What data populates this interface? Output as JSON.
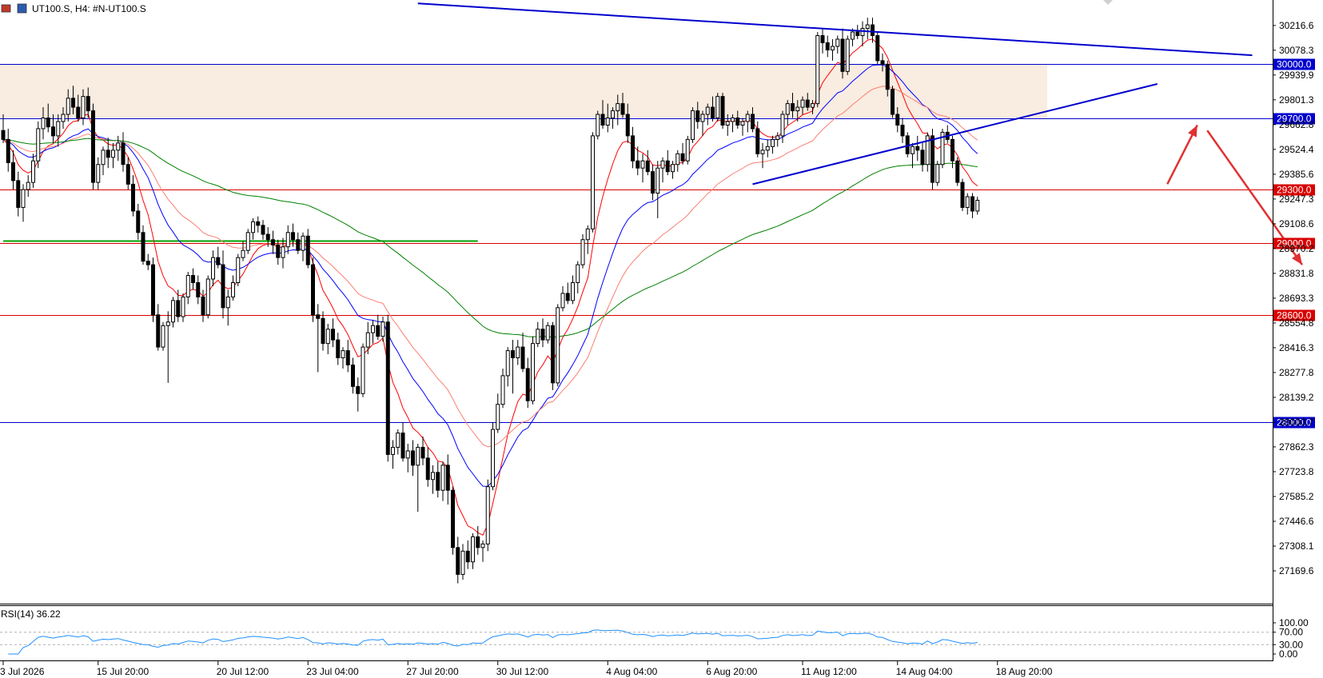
{
  "header": {
    "symbol_line": "UT100.S, H4:  #N-UT100.S"
  },
  "chart_data": {
    "type": "candlestick",
    "price_axis": {
      "ylim": [
        27000,
        30350
      ],
      "ticks": [
        "30216.6",
        "30078.3",
        "29939.9",
        "29801.3",
        "29662.8",
        "29524.4",
        "29385.6",
        "29247.3",
        "29108.6",
        "28970.2",
        "28831.8",
        "28693.3",
        "28554.8",
        "28416.3",
        "28277.8",
        "28139.2",
        "28000.7",
        "27862.3",
        "27723.8",
        "27585.2",
        "27446.6",
        "27308.1",
        "27169.6"
      ]
    },
    "time_axis": {
      "labels": [
        "3 Jul 2026",
        "15 Jul 20:00",
        "20 Jul 12:00",
        "23 Jul 04:00",
        "27 Jul 20:00",
        "30 Jul 12:00",
        "4 Aug 04:00",
        "6 Aug 20:00",
        "11 Aug 12:00",
        "14 Aug 04:00",
        "18 Aug 20:00"
      ],
      "label_bar_index": [
        0,
        19,
        43,
        61,
        81,
        99,
        121,
        141,
        160,
        179,
        199
      ]
    },
    "horizontal_levels": [
      {
        "value": 30000,
        "label": "30000.0",
        "color": "#0000cd"
      },
      {
        "value": 29700,
        "label": "29700.0",
        "color": "#0000cd"
      },
      {
        "value": 29300,
        "label": "29300.0",
        "color": "#d90000"
      },
      {
        "value": 29000,
        "label": "29000.0",
        "color": "#d90000"
      },
      {
        "value": 28600,
        "label": "28600.0",
        "color": "#d90000"
      },
      {
        "value": 28000,
        "label": "28000.0",
        "color": "#0000cd"
      }
    ],
    "zone": {
      "from": 29700,
      "to": 30000,
      "color": "#f9ece0"
    },
    "candles": [
      [
        29630,
        29720,
        29560,
        29580
      ],
      [
        29580,
        29640,
        29400,
        29450
      ],
      [
        29450,
        29520,
        29300,
        29350
      ],
      [
        29350,
        29400,
        29150,
        29200
      ],
      [
        29200,
        29330,
        29120,
        29300
      ],
      [
        29300,
        29380,
        29260,
        29340
      ],
      [
        29340,
        29500,
        29310,
        29460
      ],
      [
        29460,
        29680,
        29420,
        29640
      ],
      [
        29640,
        29760,
        29580,
        29700
      ],
      [
        29700,
        29780,
        29620,
        29650
      ],
      [
        29650,
        29720,
        29560,
        29600
      ],
      [
        29600,
        29720,
        29540,
        29680
      ],
      [
        29680,
        29760,
        29640,
        29720
      ],
      [
        29720,
        29860,
        29680,
        29810
      ],
      [
        29810,
        29880,
        29720,
        29760
      ],
      [
        29760,
        29830,
        29680,
        29700
      ],
      [
        29700,
        29860,
        29660,
        29820
      ],
      [
        29820,
        29870,
        29700,
        29740
      ],
      [
        29740,
        29780,
        29300,
        29340
      ],
      [
        29340,
        29480,
        29300,
        29440
      ],
      [
        29440,
        29540,
        29380,
        29520
      ],
      [
        29520,
        29590,
        29420,
        29480
      ],
      [
        29480,
        29560,
        29420,
        29520
      ],
      [
        29520,
        29600,
        29460,
        29560
      ],
      [
        29560,
        29620,
        29400,
        29440
      ],
      [
        29440,
        29480,
        29300,
        29330
      ],
      [
        29330,
        29380,
        29150,
        29180
      ],
      [
        29180,
        29220,
        29020,
        29060
      ],
      [
        29060,
        29100,
        28880,
        28900
      ],
      [
        28900,
        28940,
        28850,
        28880
      ],
      [
        28880,
        28920,
        28560,
        28600
      ],
      [
        28600,
        28660,
        28400,
        28420
      ],
      [
        28420,
        28560,
        28400,
        28540
      ],
      [
        28540,
        28620,
        28220,
        28560
      ],
      [
        28560,
        28700,
        28530,
        28680
      ],
      [
        28680,
        28740,
        28560,
        28590
      ],
      [
        28590,
        28720,
        28560,
        28700
      ],
      [
        28700,
        28840,
        28660,
        28820
      ],
      [
        28820,
        28860,
        28740,
        28780
      ],
      [
        28780,
        28820,
        28660,
        28700
      ],
      [
        28700,
        28740,
        28560,
        28600
      ],
      [
        28600,
        28820,
        28580,
        28800
      ],
      [
        28800,
        28960,
        28760,
        28920
      ],
      [
        28920,
        28980,
        28860,
        28880
      ],
      [
        28880,
        28960,
        28580,
        28640
      ],
      [
        28640,
        28740,
        28540,
        28700
      ],
      [
        28700,
        28820,
        28680,
        28780
      ],
      [
        28780,
        28940,
        28760,
        28920
      ],
      [
        28920,
        29010,
        28900,
        28960
      ],
      [
        28960,
        29080,
        28940,
        29060
      ],
      [
        29060,
        29140,
        29020,
        29120
      ],
      [
        29120,
        29150,
        29060,
        29100
      ],
      [
        29100,
        29130,
        29020,
        29050
      ],
      [
        29050,
        29090,
        28980,
        29020
      ],
      [
        29020,
        29070,
        28940,
        28990
      ],
      [
        28990,
        29020,
        28880,
        28920
      ],
      [
        28920,
        29030,
        28860,
        28980
      ],
      [
        28980,
        29100,
        28940,
        29060
      ],
      [
        29060,
        29110,
        28980,
        29020
      ],
      [
        29020,
        29060,
        28940,
        28960
      ],
      [
        28960,
        29060,
        28900,
        29040
      ],
      [
        29040,
        29080,
        28860,
        28880
      ],
      [
        28880,
        28920,
        28560,
        28600
      ],
      [
        28600,
        28660,
        28280,
        28580
      ],
      [
        28580,
        28620,
        28400,
        28440
      ],
      [
        28440,
        28550,
        28380,
        28520
      ],
      [
        28520,
        28580,
        28420,
        28460
      ],
      [
        28460,
        28500,
        28320,
        28360
      ],
      [
        28360,
        28420,
        28300,
        28400
      ],
      [
        28400,
        28460,
        28280,
        28320
      ],
      [
        28320,
        28360,
        28160,
        28200
      ],
      [
        28200,
        28250,
        28060,
        28160
      ],
      [
        28160,
        28440,
        28140,
        28420
      ],
      [
        28420,
        28560,
        28380,
        28500
      ],
      [
        28500,
        28570,
        28440,
        28540
      ],
      [
        28540,
        28600,
        28460,
        28480
      ],
      [
        28480,
        28590,
        28450,
        28560
      ],
      [
        28560,
        28600,
        27780,
        27820
      ],
      [
        27820,
        27900,
        27740,
        27860
      ],
      [
        27860,
        27960,
        27820,
        27940
      ],
      [
        27940,
        28000,
        27780,
        27800
      ],
      [
        27800,
        27880,
        27720,
        27840
      ],
      [
        27840,
        27900,
        27700,
        27760
      ],
      [
        27760,
        27880,
        27500,
        27860
      ],
      [
        27860,
        27920,
        27760,
        27800
      ],
      [
        27800,
        27860,
        27640,
        27680
      ],
      [
        27680,
        27760,
        27600,
        27720
      ],
      [
        27720,
        27780,
        27580,
        27620
      ],
      [
        27620,
        27780,
        27560,
        27760
      ],
      [
        27760,
        27820,
        27540,
        27620
      ],
      [
        27620,
        27640,
        27260,
        27300
      ],
      [
        27300,
        27360,
        27100,
        27150
      ],
      [
        27150,
        27320,
        27120,
        27280
      ],
      [
        27280,
        27340,
        27180,
        27220
      ],
      [
        27220,
        27380,
        27180,
        27360
      ],
      [
        27360,
        27420,
        27260,
        27300
      ],
      [
        27300,
        27340,
        27220,
        27320
      ],
      [
        27320,
        27680,
        27280,
        27640
      ],
      [
        27640,
        28000,
        27620,
        27960
      ],
      [
        27960,
        28160,
        27940,
        28100
      ],
      [
        28100,
        28300,
        28080,
        28260
      ],
      [
        28260,
        28420,
        28200,
        28400
      ],
      [
        28400,
        28460,
        28160,
        28360
      ],
      [
        28360,
        28460,
        28320,
        28420
      ],
      [
        28420,
        28500,
        28280,
        28300
      ],
      [
        28300,
        28360,
        28080,
        28120
      ],
      [
        28120,
        28480,
        28100,
        28440
      ],
      [
        28440,
        28560,
        28420,
        28520
      ],
      [
        28520,
        28580,
        28420,
        28460
      ],
      [
        28460,
        28560,
        28440,
        28540
      ],
      [
        28540,
        28560,
        28180,
        28220
      ],
      [
        28220,
        28660,
        28200,
        28640
      ],
      [
        28640,
        28760,
        28620,
        28720
      ],
      [
        28720,
        28780,
        28660,
        28680
      ],
      [
        28680,
        28820,
        28660,
        28780
      ],
      [
        28780,
        28900,
        28720,
        28880
      ],
      [
        28880,
        29050,
        28860,
        29020
      ],
      [
        29020,
        29100,
        28940,
        29080
      ],
      [
        29080,
        29620,
        29060,
        29600
      ],
      [
        29600,
        29740,
        29580,
        29720
      ],
      [
        29720,
        29800,
        29640,
        29660
      ],
      [
        29660,
        29780,
        29620,
        29700
      ],
      [
        29700,
        29760,
        29640,
        29740
      ],
      [
        29740,
        29830,
        29660,
        29780
      ],
      [
        29780,
        29840,
        29700,
        29720
      ],
      [
        29720,
        29780,
        29560,
        29600
      ],
      [
        29600,
        29650,
        29420,
        29460
      ],
      [
        29460,
        29540,
        29380,
        29420
      ],
      [
        29420,
        29500,
        29340,
        29460
      ],
      [
        29460,
        29520,
        29380,
        29400
      ],
      [
        29400,
        29440,
        29240,
        29280
      ],
      [
        29280,
        29460,
        29140,
        29420
      ],
      [
        29420,
        29480,
        29340,
        29460
      ],
      [
        29460,
        29520,
        29380,
        29400
      ],
      [
        29400,
        29460,
        29360,
        29440
      ],
      [
        29440,
        29520,
        29400,
        29500
      ],
      [
        29500,
        29560,
        29440,
        29460
      ],
      [
        29460,
        29600,
        29440,
        29580
      ],
      [
        29580,
        29760,
        29560,
        29740
      ],
      [
        29740,
        29790,
        29640,
        29680
      ],
      [
        29680,
        29740,
        29600,
        29720
      ],
      [
        29720,
        29780,
        29660,
        29760
      ],
      [
        29760,
        29820,
        29680,
        29700
      ],
      [
        29700,
        29840,
        29680,
        29820
      ],
      [
        29820,
        29840,
        29640,
        29660
      ],
      [
        29660,
        29720,
        29600,
        29680
      ],
      [
        29680,
        29720,
        29620,
        29700
      ],
      [
        29700,
        29740,
        29640,
        29660
      ],
      [
        29660,
        29700,
        29600,
        29680
      ],
      [
        29680,
        29740,
        29620,
        29720
      ],
      [
        29720,
        29760,
        29620,
        29640
      ],
      [
        29640,
        29680,
        29480,
        29500
      ],
      [
        29500,
        29560,
        29420,
        29520
      ],
      [
        29520,
        29580,
        29480,
        29540
      ],
      [
        29540,
        29600,
        29500,
        29580
      ],
      [
        29580,
        29620,
        29540,
        29600
      ],
      [
        29600,
        29740,
        29560,
        29720
      ],
      [
        29720,
        29800,
        29660,
        29780
      ],
      [
        29780,
        29840,
        29700,
        29740
      ],
      [
        29740,
        29800,
        29680,
        29760
      ],
      [
        29760,
        29820,
        29720,
        29800
      ],
      [
        29800,
        29840,
        29740,
        29760
      ],
      [
        29760,
        29800,
        29720,
        29780
      ],
      [
        29780,
        30180,
        29760,
        30160
      ],
      [
        30160,
        30200,
        30060,
        30120
      ],
      [
        30120,
        30160,
        30040,
        30080
      ],
      [
        30080,
        30140,
        30020,
        30100
      ],
      [
        30100,
        30160,
        30060,
        30140
      ],
      [
        30140,
        30200,
        29920,
        29960
      ],
      [
        29960,
        30160,
        29940,
        30140
      ],
      [
        30140,
        30200,
        30100,
        30180
      ],
      [
        30180,
        30220,
        30140,
        30160
      ],
      [
        30160,
        30240,
        30100,
        30200
      ],
      [
        30200,
        30260,
        30140,
        30220
      ],
      [
        30220,
        30260,
        30120,
        30160
      ],
      [
        30160,
        30180,
        30000,
        30020
      ],
      [
        30020,
        30060,
        29960,
        30000
      ],
      [
        30000,
        30020,
        29820,
        29860
      ],
      [
        29860,
        29880,
        29700,
        29720
      ],
      [
        29720,
        29760,
        29620,
        29660
      ],
      [
        29660,
        29700,
        29560,
        29600
      ],
      [
        29600,
        29620,
        29480,
        29500
      ],
      [
        29500,
        29560,
        29420,
        29540
      ],
      [
        29540,
        29600,
        29460,
        29520
      ],
      [
        29520,
        29560,
        29400,
        29440
      ],
      [
        29440,
        29620,
        29400,
        29600
      ],
      [
        29600,
        29640,
        29300,
        29340
      ],
      [
        29340,
        29460,
        29320,
        29440
      ],
      [
        29440,
        29640,
        29420,
        29620
      ],
      [
        29620,
        29660,
        29560,
        29580
      ],
      [
        29580,
        29600,
        29420,
        29460
      ],
      [
        29460,
        29480,
        29320,
        29340
      ],
      [
        29340,
        29360,
        29180,
        29200
      ],
      [
        29200,
        29280,
        29160,
        29260
      ],
      [
        29260,
        29280,
        29140,
        29180
      ],
      [
        29180,
        29260,
        29160,
        29240
      ]
    ],
    "moving_averages": [
      {
        "name": "ma-fast",
        "color": "#ff0000",
        "period": 8
      },
      {
        "name": "ma-blue",
        "color": "#0000ff",
        "period": 21
      },
      {
        "name": "ma-salmon",
        "color": "#fa8072",
        "period": 34
      },
      {
        "name": "ma-green",
        "color": "#008000",
        "period": 100
      }
    ],
    "trendlines": [
      {
        "color": "#0000cd",
        "from": [
          83,
          30340
        ],
        "to": [
          250,
          30050
        ]
      },
      {
        "color": "#0000cd",
        "from": [
          150,
          29330
        ],
        "to": [
          231,
          29890
        ]
      }
    ],
    "green_level": {
      "value": 29015,
      "from_bar": 0,
      "to_bar": 95,
      "color": "#00a000"
    },
    "arrows": [
      {
        "color": "#e03030",
        "from": [
          233,
          29330
        ],
        "to": [
          239,
          29660
        ]
      },
      {
        "color": "#e03030",
        "from": [
          241,
          29630
        ],
        "to": [
          260,
          28880
        ]
      }
    ],
    "rsi": {
      "label": "RSI(14) 36.22",
      "ylim": [
        0,
        100
      ],
      "ticks": [
        "100.00",
        "70.00",
        "30.00",
        "0.00"
      ],
      "levels": [
        70,
        30
      ],
      "line_color": "#1e90ff"
    }
  }
}
